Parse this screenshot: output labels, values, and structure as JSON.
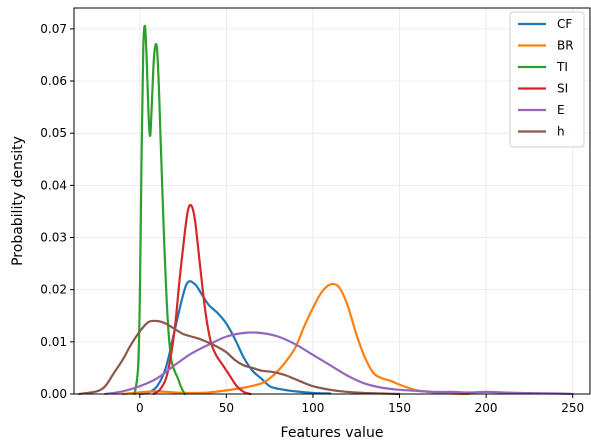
{
  "chart_data": {
    "type": "line",
    "title": "",
    "xlabel": "Features value",
    "ylabel": "Probability density",
    "xlim": [
      -38,
      260
    ],
    "ylim": [
      0,
      0.074
    ],
    "xticks": [
      0,
      50,
      100,
      150,
      200,
      250
    ],
    "yticks": [
      0.0,
      0.01,
      0.02,
      0.03,
      0.04,
      0.05,
      0.06,
      0.07
    ],
    "xtick_labels": [
      "0",
      "50",
      "100",
      "150",
      "200",
      "250"
    ],
    "ytick_labels": [
      "0.00",
      "0.01",
      "0.02",
      "0.03",
      "0.04",
      "0.05",
      "0.06",
      "0.07"
    ],
    "grid": true,
    "legend_position": "top-right",
    "series": [
      {
        "name": "CF",
        "color": "#1f77b4",
        "points": [
          [
            0,
            0
          ],
          [
            5,
            0.0003
          ],
          [
            10,
            0.0015
          ],
          [
            15,
            0.005
          ],
          [
            20,
            0.012
          ],
          [
            25,
            0.019
          ],
          [
            28,
            0.0215
          ],
          [
            32,
            0.021
          ],
          [
            36,
            0.019
          ],
          [
            40,
            0.017
          ],
          [
            45,
            0.0155
          ],
          [
            50,
            0.0135
          ],
          [
            55,
            0.0105
          ],
          [
            60,
            0.007
          ],
          [
            65,
            0.0045
          ],
          [
            70,
            0.003
          ],
          [
            75,
            0.0015
          ],
          [
            80,
            0.001
          ],
          [
            90,
            0.0005
          ],
          [
            100,
            0.0002
          ],
          [
            110,
            0.0001
          ]
        ]
      },
      {
        "name": "BR",
        "color": "#ff7f0e",
        "points": [
          [
            -10,
            0
          ],
          [
            0,
            0.0003
          ],
          [
            10,
            0.0005
          ],
          [
            20,
            0.0003
          ],
          [
            30,
            0.0002
          ],
          [
            40,
            0.0003
          ],
          [
            50,
            0.0007
          ],
          [
            60,
            0.0012
          ],
          [
            70,
            0.002
          ],
          [
            75,
            0.003
          ],
          [
            80,
            0.0045
          ],
          [
            85,
            0.0065
          ],
          [
            90,
            0.009
          ],
          [
            95,
            0.013
          ],
          [
            100,
            0.0165
          ],
          [
            105,
            0.0195
          ],
          [
            110,
            0.021
          ],
          [
            115,
            0.0205
          ],
          [
            120,
            0.017
          ],
          [
            125,
            0.0115
          ],
          [
            130,
            0.007
          ],
          [
            135,
            0.004
          ],
          [
            140,
            0.003
          ],
          [
            145,
            0.0025
          ],
          [
            150,
            0.0018
          ],
          [
            155,
            0.0012
          ],
          [
            160,
            0.0007
          ],
          [
            170,
            0.0003
          ],
          [
            180,
            0.0001
          ],
          [
            190,
            0
          ]
        ]
      },
      {
        "name": "TI",
        "color": "#2ca02c",
        "points": [
          [
            -3,
            0
          ],
          [
            -1,
            0.005
          ],
          [
            0,
            0.018
          ],
          [
            1,
            0.045
          ],
          [
            2,
            0.066
          ],
          [
            3,
            0.0705
          ],
          [
            4,
            0.064
          ],
          [
            5,
            0.054
          ],
          [
            6,
            0.0495
          ],
          [
            7,
            0.056
          ],
          [
            8,
            0.0635
          ],
          [
            9,
            0.0668
          ],
          [
            10,
            0.066
          ],
          [
            11,
            0.059
          ],
          [
            12,
            0.049
          ],
          [
            14,
            0.03
          ],
          [
            16,
            0.015
          ],
          [
            18,
            0.007
          ],
          [
            20,
            0.0045
          ],
          [
            22,
            0.003
          ],
          [
            24,
            0.0012
          ],
          [
            26,
            0
          ]
        ]
      },
      {
        "name": "SI",
        "color": "#d62728",
        "points": [
          [
            8,
            0
          ],
          [
            12,
            0.001
          ],
          [
            16,
            0.004
          ],
          [
            20,
            0.012
          ],
          [
            23,
            0.022
          ],
          [
            26,
            0.031
          ],
          [
            28,
            0.0355
          ],
          [
            30,
            0.036
          ],
          [
            32,
            0.033
          ],
          [
            35,
            0.024
          ],
          [
            38,
            0.0155
          ],
          [
            41,
            0.01
          ],
          [
            44,
            0.0075
          ],
          [
            48,
            0.0055
          ],
          [
            52,
            0.0035
          ],
          [
            56,
            0.0015
          ],
          [
            60,
            0.0004
          ],
          [
            64,
            0
          ]
        ]
      },
      {
        "name": "E",
        "color": "#9467bd",
        "points": [
          [
            -20,
            0
          ],
          [
            -10,
            0.0005
          ],
          [
            0,
            0.0015
          ],
          [
            10,
            0.003
          ],
          [
            20,
            0.0055
          ],
          [
            30,
            0.0078
          ],
          [
            40,
            0.0095
          ],
          [
            50,
            0.011
          ],
          [
            60,
            0.0117
          ],
          [
            70,
            0.0117
          ],
          [
            80,
            0.011
          ],
          [
            90,
            0.0095
          ],
          [
            100,
            0.0075
          ],
          [
            110,
            0.0055
          ],
          [
            120,
            0.0035
          ],
          [
            130,
            0.002
          ],
          [
            140,
            0.0012
          ],
          [
            150,
            0.0008
          ],
          [
            160,
            0.0006
          ],
          [
            170,
            0.0004
          ],
          [
            180,
            0.0004
          ],
          [
            190,
            0.0003
          ],
          [
            200,
            0.0004
          ],
          [
            210,
            0.0003
          ],
          [
            220,
            0.0002
          ],
          [
            240,
            0.0001
          ],
          [
            250,
            0
          ]
        ]
      },
      {
        "name": "h",
        "color": "#8c564b",
        "points": [
          [
            -35,
            0
          ],
          [
            -25,
            0.0005
          ],
          [
            -20,
            0.0015
          ],
          [
            -15,
            0.004
          ],
          [
            -10,
            0.0065
          ],
          [
            -5,
            0.0095
          ],
          [
            0,
            0.012
          ],
          [
            5,
            0.0138
          ],
          [
            10,
            0.014
          ],
          [
            15,
            0.0135
          ],
          [
            20,
            0.0125
          ],
          [
            25,
            0.0115
          ],
          [
            30,
            0.011
          ],
          [
            35,
            0.0105
          ],
          [
            40,
            0.0098
          ],
          [
            45,
            0.009
          ],
          [
            50,
            0.008
          ],
          [
            55,
            0.0065
          ],
          [
            60,
            0.0055
          ],
          [
            65,
            0.005
          ],
          [
            70,
            0.0045
          ],
          [
            75,
            0.0043
          ],
          [
            80,
            0.004
          ],
          [
            85,
            0.0035
          ],
          [
            90,
            0.0028
          ],
          [
            100,
            0.0015
          ],
          [
            110,
            0.0008
          ],
          [
            120,
            0.0004
          ],
          [
            130,
            0.0002
          ],
          [
            140,
            0.0001
          ],
          [
            150,
            0
          ]
        ]
      }
    ]
  }
}
